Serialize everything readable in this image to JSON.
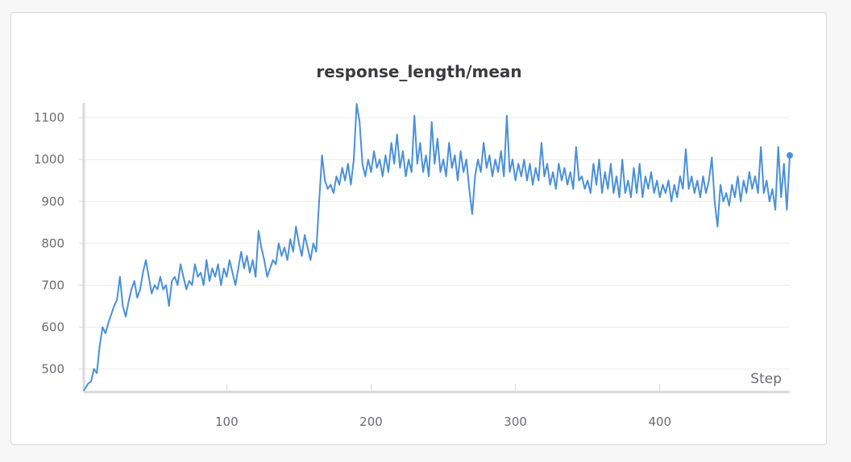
{
  "chart_data": {
    "type": "line",
    "title": "response_length/mean",
    "xlabel": "Step",
    "ylabel": "",
    "xlim": [
      1,
      490
    ],
    "ylim": [
      445,
      1135
    ],
    "x_ticks": [
      100,
      200,
      300,
      400
    ],
    "y_ticks": [
      500,
      600,
      700,
      800,
      900,
      1000,
      1100
    ],
    "grid": true,
    "legend": "none",
    "series": [
      {
        "color": "#4a90d9",
        "points": [
          [
            1,
            448
          ],
          [
            4,
            465
          ],
          [
            6,
            470
          ],
          [
            8,
            500
          ],
          [
            10,
            490
          ],
          [
            12,
            555
          ],
          [
            14,
            600
          ],
          [
            16,
            585
          ],
          [
            18,
            610
          ],
          [
            20,
            630
          ],
          [
            22,
            650
          ],
          [
            24,
            665
          ],
          [
            26,
            720
          ],
          [
            28,
            650
          ],
          [
            30,
            625
          ],
          [
            32,
            660
          ],
          [
            34,
            690
          ],
          [
            36,
            710
          ],
          [
            38,
            670
          ],
          [
            40,
            690
          ],
          [
            42,
            730
          ],
          [
            44,
            760
          ],
          [
            46,
            720
          ],
          [
            48,
            680
          ],
          [
            50,
            700
          ],
          [
            52,
            690
          ],
          [
            54,
            720
          ],
          [
            56,
            690
          ],
          [
            58,
            700
          ],
          [
            60,
            650
          ],
          [
            62,
            710
          ],
          [
            64,
            720
          ],
          [
            66,
            700
          ],
          [
            68,
            750
          ],
          [
            70,
            720
          ],
          [
            72,
            690
          ],
          [
            74,
            710
          ],
          [
            76,
            700
          ],
          [
            78,
            750
          ],
          [
            80,
            720
          ],
          [
            82,
            730
          ],
          [
            84,
            700
          ],
          [
            86,
            760
          ],
          [
            88,
            710
          ],
          [
            90,
            740
          ],
          [
            92,
            720
          ],
          [
            94,
            750
          ],
          [
            96,
            700
          ],
          [
            98,
            740
          ],
          [
            100,
            720
          ],
          [
            102,
            760
          ],
          [
            104,
            730
          ],
          [
            106,
            700
          ],
          [
            108,
            740
          ],
          [
            110,
            780
          ],
          [
            112,
            740
          ],
          [
            114,
            770
          ],
          [
            116,
            730
          ],
          [
            118,
            760
          ],
          [
            120,
            720
          ],
          [
            122,
            830
          ],
          [
            124,
            790
          ],
          [
            126,
            760
          ],
          [
            128,
            720
          ],
          [
            130,
            740
          ],
          [
            132,
            760
          ],
          [
            134,
            750
          ],
          [
            136,
            800
          ],
          [
            138,
            770
          ],
          [
            140,
            790
          ],
          [
            142,
            760
          ],
          [
            144,
            810
          ],
          [
            146,
            780
          ],
          [
            148,
            840
          ],
          [
            150,
            800
          ],
          [
            152,
            770
          ],
          [
            154,
            820
          ],
          [
            156,
            790
          ],
          [
            158,
            760
          ],
          [
            160,
            800
          ],
          [
            162,
            780
          ],
          [
            164,
            900
          ],
          [
            166,
            1010
          ],
          [
            168,
            950
          ],
          [
            170,
            930
          ],
          [
            172,
            940
          ],
          [
            174,
            920
          ],
          [
            176,
            960
          ],
          [
            178,
            940
          ],
          [
            180,
            980
          ],
          [
            182,
            950
          ],
          [
            184,
            990
          ],
          [
            186,
            940
          ],
          [
            188,
            1000
          ],
          [
            190,
            1133
          ],
          [
            192,
            1090
          ],
          [
            194,
            990
          ],
          [
            196,
            960
          ],
          [
            198,
            1000
          ],
          [
            200,
            970
          ],
          [
            202,
            1020
          ],
          [
            204,
            980
          ],
          [
            206,
            1000
          ],
          [
            208,
            960
          ],
          [
            210,
            1010
          ],
          [
            212,
            970
          ],
          [
            214,
            1040
          ],
          [
            216,
            990
          ],
          [
            218,
            1060
          ],
          [
            220,
            980
          ],
          [
            222,
            1020
          ],
          [
            224,
            960
          ],
          [
            226,
            1000
          ],
          [
            228,
            970
          ],
          [
            230,
            1105
          ],
          [
            232,
            990
          ],
          [
            234,
            1040
          ],
          [
            236,
            970
          ],
          [
            238,
            1010
          ],
          [
            240,
            960
          ],
          [
            242,
            1090
          ],
          [
            244,
            990
          ],
          [
            246,
            1050
          ],
          [
            248,
            970
          ],
          [
            250,
            1000
          ],
          [
            252,
            960
          ],
          [
            254,
            1040
          ],
          [
            256,
            980
          ],
          [
            258,
            1010
          ],
          [
            260,
            950
          ],
          [
            262,
            1020
          ],
          [
            264,
            970
          ],
          [
            266,
            1000
          ],
          [
            268,
            930
          ],
          [
            270,
            870
          ],
          [
            272,
            960
          ],
          [
            274,
            1000
          ],
          [
            276,
            970
          ],
          [
            278,
            1040
          ],
          [
            280,
            980
          ],
          [
            282,
            1010
          ],
          [
            284,
            960
          ],
          [
            286,
            1000
          ],
          [
            288,
            970
          ],
          [
            290,
            1020
          ],
          [
            292,
            960
          ],
          [
            294,
            1105
          ],
          [
            296,
            970
          ],
          [
            298,
            1000
          ],
          [
            300,
            950
          ],
          [
            302,
            990
          ],
          [
            304,
            960
          ],
          [
            306,
            1000
          ],
          [
            308,
            950
          ],
          [
            310,
            990
          ],
          [
            312,
            940
          ],
          [
            314,
            980
          ],
          [
            316,
            950
          ],
          [
            318,
            1040
          ],
          [
            320,
            960
          ],
          [
            322,
            990
          ],
          [
            324,
            940
          ],
          [
            326,
            970
          ],
          [
            328,
            930
          ],
          [
            330,
            990
          ],
          [
            332,
            950
          ],
          [
            334,
            980
          ],
          [
            336,
            940
          ],
          [
            338,
            970
          ],
          [
            340,
            930
          ],
          [
            342,
            1030
          ],
          [
            344,
            950
          ],
          [
            346,
            960
          ],
          [
            348,
            930
          ],
          [
            350,
            950
          ],
          [
            352,
            920
          ],
          [
            354,
            990
          ],
          [
            356,
            940
          ],
          [
            358,
            1000
          ],
          [
            360,
            920
          ],
          [
            362,
            970
          ],
          [
            364,
            930
          ],
          [
            366,
            990
          ],
          [
            368,
            920
          ],
          [
            370,
            960
          ],
          [
            372,
            910
          ],
          [
            374,
            1000
          ],
          [
            376,
            920
          ],
          [
            378,
            950
          ],
          [
            380,
            910
          ],
          [
            382,
            980
          ],
          [
            384,
            920
          ],
          [
            386,
            990
          ],
          [
            388,
            910
          ],
          [
            390,
            960
          ],
          [
            392,
            930
          ],
          [
            394,
            970
          ],
          [
            396,
            920
          ],
          [
            398,
            950
          ],
          [
            400,
            910
          ],
          [
            402,
            940
          ],
          [
            404,
            920
          ],
          [
            406,
            950
          ],
          [
            408,
            900
          ],
          [
            410,
            940
          ],
          [
            412,
            910
          ],
          [
            414,
            960
          ],
          [
            416,
            930
          ],
          [
            418,
            1025
          ],
          [
            420,
            930
          ],
          [
            422,
            960
          ],
          [
            424,
            920
          ],
          [
            426,
            950
          ],
          [
            428,
            910
          ],
          [
            430,
            960
          ],
          [
            432,
            920
          ],
          [
            434,
            950
          ],
          [
            436,
            1005
          ],
          [
            438,
            900
          ],
          [
            440,
            840
          ],
          [
            442,
            940
          ],
          [
            444,
            900
          ],
          [
            446,
            920
          ],
          [
            448,
            890
          ],
          [
            450,
            940
          ],
          [
            452,
            910
          ],
          [
            454,
            960
          ],
          [
            456,
            900
          ],
          [
            458,
            950
          ],
          [
            460,
            920
          ],
          [
            462,
            970
          ],
          [
            464,
            930
          ],
          [
            466,
            960
          ],
          [
            468,
            920
          ],
          [
            470,
            1030
          ],
          [
            472,
            920
          ],
          [
            474,
            950
          ],
          [
            476,
            900
          ],
          [
            478,
            930
          ],
          [
            480,
            880
          ],
          [
            482,
            1030
          ],
          [
            484,
            910
          ],
          [
            486,
            990
          ],
          [
            488,
            880
          ],
          [
            490,
            1010
          ]
        ]
      }
    ]
  }
}
